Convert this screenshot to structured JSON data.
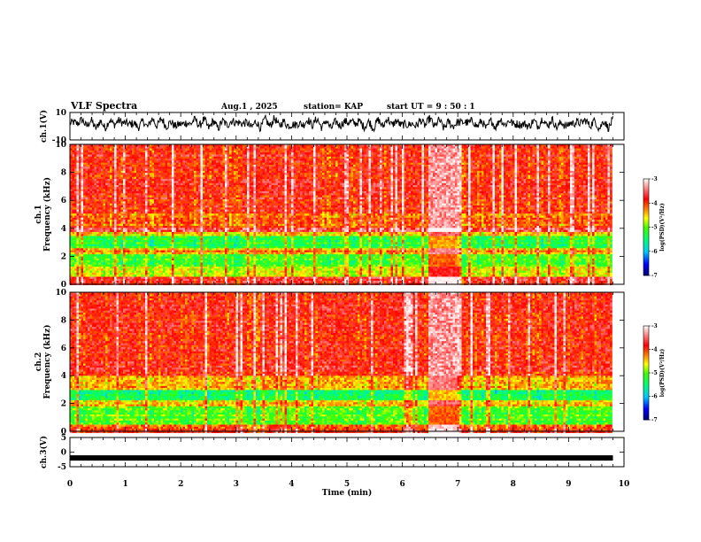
{
  "header": {
    "title": "VLF Spectra",
    "date": "Aug.1 , 2025",
    "station": "station= KAP",
    "start": "start UT = 9 : 50 : 1"
  },
  "colors": {
    "spectrum_scale": [
      "#00008b",
      "#0000ff",
      "#00ffff",
      "#00ff00",
      "#ffff00",
      "#ff0000",
      "#ffd0d0",
      "#ffffff"
    ]
  },
  "chart_data": [
    {
      "id": "ch1-waveform",
      "type": "line",
      "ylabel": "ch.1(V)",
      "ylim": [
        -10,
        10
      ],
      "yticks": [
        "10",
        "-10"
      ],
      "xlim": [
        0,
        10
      ],
      "description_values": "noisy waveform fluctuating around +2 V, range roughly -3 to 8 V, data until ~9.8 min"
    },
    {
      "id": "ch1-spectrogram",
      "type": "heatmap",
      "ylabel": "ch.1\nFrequency (kHz)",
      "ylabel_line1": "ch.1",
      "ylabel_line2": "Frequency (kHz)",
      "ylim": [
        0,
        10
      ],
      "yticks": [
        "0",
        "2",
        "4",
        "6",
        "8",
        "10"
      ],
      "xlim": [
        0,
        10
      ],
      "colorbar": {
        "label": "log(PSD)(V²/Hz)",
        "range": [
          -7,
          -3
        ],
        "ticks": [
          "-3",
          "-4",
          "-5",
          "-6",
          "-7"
        ]
      },
      "bands": [
        {
          "from": 0.0,
          "to": 0.6,
          "level": -3.8
        },
        {
          "from": 0.6,
          "to": 1.3,
          "level": -4.6
        },
        {
          "from": 1.3,
          "to": 2.2,
          "level": -5.0
        },
        {
          "from": 2.2,
          "to": 2.6,
          "level": -4.3
        },
        {
          "from": 2.6,
          "to": 3.4,
          "level": -5.2
        },
        {
          "from": 3.4,
          "to": 3.8,
          "level": -4.4
        },
        {
          "from": 3.8,
          "to": 4.0,
          "level": -3.6
        },
        {
          "from": 4.0,
          "to": 5.0,
          "level": -4.1
        },
        {
          "from": 5.0,
          "to": 10.0,
          "level": -3.8
        }
      ],
      "event": {
        "t_from": 6.45,
        "t_to": 7.0,
        "note": "broadband enhancement"
      }
    },
    {
      "id": "ch2-spectrogram",
      "type": "heatmap",
      "ylabel": "ch.2\nFrequency (kHz)",
      "ylabel_line1": "ch.2",
      "ylabel_line2": "Frequency (kHz)",
      "ylim": [
        0,
        10
      ],
      "yticks": [
        "0",
        "2",
        "4",
        "6",
        "8",
        "10"
      ],
      "xlim": [
        0,
        10
      ],
      "colorbar": {
        "label": "log(PSD)(V²/Hz)",
        "range": [
          -7,
          -3
        ],
        "ticks": [
          "-3",
          "-4",
          "-5",
          "-6",
          "-7"
        ]
      },
      "bands": [
        {
          "from": 0.0,
          "to": 0.5,
          "level": -4.0
        },
        {
          "from": 0.5,
          "to": 1.8,
          "level": -5.0
        },
        {
          "from": 1.8,
          "to": 2.2,
          "level": -4.4
        },
        {
          "from": 2.2,
          "to": 3.0,
          "level": -5.3
        },
        {
          "from": 3.0,
          "to": 4.0,
          "level": -4.3
        },
        {
          "from": 4.0,
          "to": 10.0,
          "level": -3.8
        }
      ],
      "event": {
        "t_from": 6.45,
        "t_to": 7.0,
        "note": "broadband enhancement"
      }
    },
    {
      "id": "ch3-waveform",
      "type": "line",
      "ylabel": "ch.3(V)",
      "ylim": [
        -5,
        5
      ],
      "yticks": [
        "5",
        "0",
        "-5"
      ],
      "xlim": [
        0,
        10
      ],
      "xlabel": "Time (min)",
      "xticks": [
        "0",
        "1",
        "2",
        "3",
        "4",
        "5",
        "6",
        "7",
        "8",
        "9",
        "10"
      ],
      "description_values": "flat thick trace near -2 V until ~9.8 min"
    }
  ]
}
